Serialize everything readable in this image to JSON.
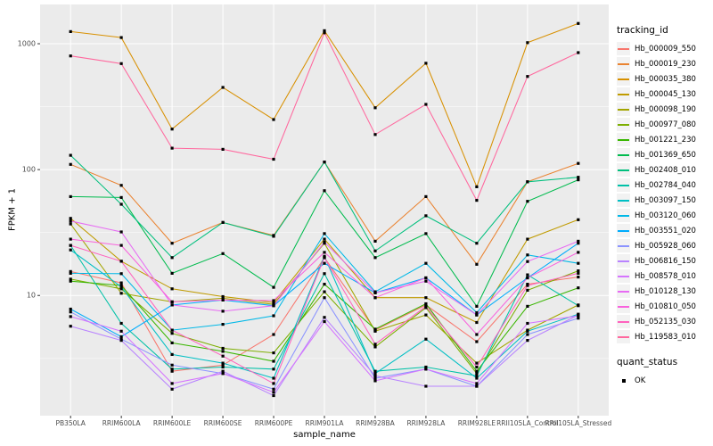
{
  "figure": {
    "y_axis_title": "FPKM + 1",
    "x_axis_title": "sample_name"
  },
  "chart_data": {
    "type": "line",
    "title": "",
    "xlabel": "sample_name",
    "ylabel": "FPKM + 1",
    "y_scale": "log10",
    "y_ticks": [
      10,
      100,
      1000
    ],
    "y_minor_ticks": [
      3.16,
      31.6,
      316
    ],
    "ylim_log10": [
      0.045,
      3.312
    ],
    "grid": "on",
    "legend_position": "right",
    "legend_title": "tracking_id",
    "panel_bg": "#EBEBEB",
    "grid_color": "#FFFFFF",
    "tick_label_color": "#4D4D4D",
    "point_color": "#000000",
    "categories": [
      "PB350LA",
      "RRIM600LA",
      "RRIM600LE",
      "RRIM600SE",
      "RRIM600PE",
      "RRIM901LA",
      "RRIM928BA",
      "RRIM928LA",
      "RRIM928LE",
      "RRII105LA_Control",
      "RRII105LA_Stressed"
    ],
    "series": [
      {
        "name": "Hb_000009_550",
        "color": "#F8766D",
        "values": [
          15.5,
          12.6,
          2.5,
          2.8,
          4.9,
          20,
          5.3,
          8.4,
          4.3,
          12.3,
          14
        ]
      },
      {
        "name": "Hb_000019_230",
        "color": "#EA8331",
        "values": [
          110,
          75,
          26,
          38,
          30,
          115,
          27,
          61,
          17.7,
          80,
          112
        ]
      },
      {
        "name": "Hb_000035_380",
        "color": "#D89000",
        "values": [
          1250,
          1120,
          210,
          450,
          250,
          1270,
          310,
          700,
          73,
          1020,
          1450
        ]
      },
      {
        "name": "Hb_000045_130",
        "color": "#C09B00",
        "values": [
          41,
          18.7,
          11.3,
          9.8,
          8.8,
          28,
          9.6,
          9.6,
          6.1,
          28,
          40
        ]
      },
      {
        "name": "Hb_000098_190",
        "color": "#A3A500",
        "values": [
          37,
          10.4,
          8.9,
          9.5,
          8.5,
          26,
          5.2,
          7,
          2.9,
          5.3,
          8.4
        ]
      },
      {
        "name": "Hb_000977_080",
        "color": "#7CAE00",
        "values": [
          13.5,
          11.3,
          5,
          3.8,
          3.5,
          10.7,
          3.9,
          8,
          2.4,
          11,
          15.7
        ]
      },
      {
        "name": "Hb_001221_230",
        "color": "#39B600",
        "values": [
          13,
          12,
          4.2,
          3.6,
          3,
          12.3,
          5.4,
          8.6,
          2.5,
          8.2,
          11.5
        ]
      },
      {
        "name": "Hb_001369_650",
        "color": "#00BB4E",
        "values": [
          61,
          60,
          15,
          21.5,
          11.6,
          68,
          20,
          31,
          8.2,
          56,
          83
        ]
      },
      {
        "name": "Hb_002408_010",
        "color": "#00BF7D",
        "values": [
          130,
          53,
          20,
          38,
          29.5,
          115,
          22.6,
          43,
          26,
          80,
          87
        ]
      },
      {
        "name": "Hb_002784_040",
        "color": "#00C1A7",
        "values": [
          25,
          6,
          2.6,
          2.7,
          2.6,
          14.9,
          2.5,
          2.7,
          2.3,
          14.6,
          8.3
        ]
      },
      {
        "name": "Hb_003097_150",
        "color": "#00BFC4",
        "values": [
          23,
          11.7,
          3.4,
          2.9,
          2.2,
          20.5,
          2.4,
          4.5,
          2.2,
          5.2,
          7.1
        ]
      },
      {
        "name": "Hb_003120_060",
        "color": "#00B8E7",
        "values": [
          15,
          14.9,
          5.3,
          5.9,
          6.9,
          31,
          10.7,
          18,
          7.3,
          21,
          18
        ]
      },
      {
        "name": "Hb_003551_020",
        "color": "#00ACFC",
        "values": [
          7.8,
          4.7,
          8.4,
          9.2,
          8.3,
          18,
          10.5,
          13.8,
          7,
          13.8,
          26
        ]
      },
      {
        "name": "Hb_005928_060",
        "color": "#8B93FF",
        "values": [
          7.4,
          4.5,
          2.8,
          2.4,
          1.8,
          9.6,
          2.2,
          2.6,
          1.9,
          4.9,
          6.6
        ]
      },
      {
        "name": "Hb_006816_150",
        "color": "#B983FF",
        "values": [
          5.7,
          4.4,
          1.8,
          2.5,
          1.6,
          6.7,
          2.3,
          1.9,
          1.9,
          4.4,
          7
        ]
      },
      {
        "name": "Hb_008578_010",
        "color": "#D575FE",
        "values": [
          6.8,
          5.2,
          2,
          2.4,
          1.7,
          6.2,
          2.1,
          2.6,
          2,
          6,
          6.9
        ]
      },
      {
        "name": "Hb_010128_130",
        "color": "#E76BF3",
        "values": [
          39,
          32,
          8.4,
          7.5,
          8.3,
          26.5,
          10.5,
          13,
          7,
          18.6,
          27
        ]
      },
      {
        "name": "Hb_010810_050",
        "color": "#F962DD",
        "values": [
          28,
          25,
          8.9,
          9.2,
          9.1,
          22,
          9.6,
          13.8,
          4.9,
          13.8,
          22
        ]
      },
      {
        "name": "Hb_052135_030",
        "color": "#FF62BE",
        "values": [
          25,
          18.7,
          5.3,
          3.3,
          2,
          20,
          4.1,
          8.2,
          2.7,
          12,
          15
        ]
      },
      {
        "name": "Hb_119583_010",
        "color": "#FF689E",
        "values": [
          800,
          695,
          148,
          145,
          121,
          1220,
          190,
          330,
          57,
          550,
          850
        ]
      }
    ],
    "quant_legend": {
      "title": "quant_status",
      "items": [
        "OK"
      ]
    }
  }
}
